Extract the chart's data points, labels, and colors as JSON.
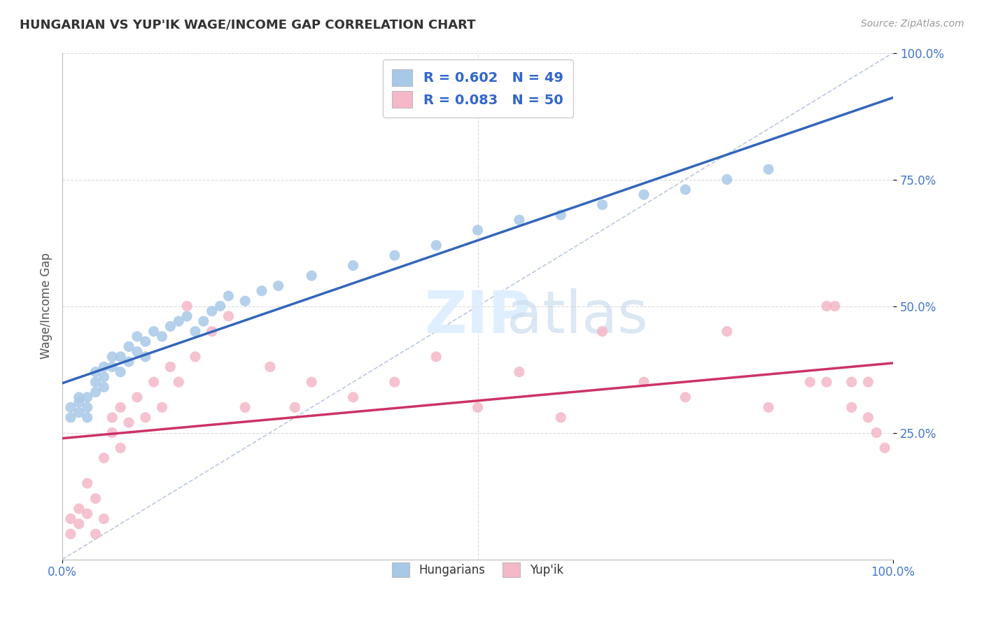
{
  "title": "HUNGARIAN VS YUP'IK WAGE/INCOME GAP CORRELATION CHART",
  "source": "Source: ZipAtlas.com",
  "ylabel": "Wage/Income Gap",
  "hungarian_color": "#a8c8e8",
  "yupik_color": "#f4b8c8",
  "hungarian_line_color": "#3366bb",
  "yupik_line_color": "#cc3366",
  "diagonal_color": "#aabbdd",
  "background_color": "#ffffff",
  "grid_color": "#cccccc",
  "tick_color": "#4477cc",
  "hungarian_x": [
    1,
    1,
    2,
    2,
    2,
    3,
    3,
    3,
    4,
    4,
    4,
    5,
    5,
    5,
    6,
    6,
    7,
    7,
    8,
    8,
    9,
    9,
    10,
    10,
    11,
    12,
    13,
    14,
    15,
    16,
    17,
    18,
    19,
    20,
    22,
    24,
    26,
    30,
    35,
    40,
    45,
    50,
    55,
    60,
    65,
    70,
    75,
    80,
    85
  ],
  "hungarian_y": [
    28,
    30,
    29,
    31,
    32,
    30,
    32,
    28,
    33,
    35,
    37,
    36,
    38,
    34,
    38,
    40,
    37,
    40,
    39,
    42,
    41,
    44,
    40,
    43,
    45,
    44,
    46,
    47,
    48,
    45,
    47,
    49,
    50,
    52,
    51,
    53,
    54,
    56,
    58,
    60,
    62,
    65,
    67,
    68,
    70,
    72,
    73,
    75,
    77
  ],
  "yupik_x": [
    1,
    1,
    2,
    2,
    3,
    3,
    4,
    4,
    5,
    5,
    6,
    6,
    7,
    7,
    8,
    9,
    10,
    11,
    12,
    13,
    14,
    15,
    16,
    18,
    20,
    22,
    25,
    28,
    30,
    35,
    40,
    45,
    50,
    55,
    60,
    65,
    70,
    75,
    80,
    85,
    90,
    92,
    92,
    93,
    95,
    95,
    97,
    97,
    98,
    99
  ],
  "yupik_y": [
    5,
    8,
    7,
    10,
    9,
    15,
    12,
    5,
    20,
    8,
    25,
    28,
    22,
    30,
    27,
    32,
    28,
    35,
    30,
    38,
    35,
    50,
    40,
    45,
    48,
    30,
    38,
    30,
    35,
    32,
    35,
    40,
    30,
    37,
    28,
    45,
    35,
    32,
    45,
    30,
    35,
    50,
    35,
    50,
    30,
    35,
    28,
    35,
    25,
    22
  ],
  "xlim": [
    0,
    100
  ],
  "ylim": [
    0,
    100
  ],
  "ytick_positions": [
    25,
    50,
    75,
    100
  ],
  "ytick_labels": [
    "25.0%",
    "50.0%",
    "75.0%",
    "100.0%"
  ],
  "xtick_left_label": "0.0%",
  "xtick_right_label": "100.0%"
}
